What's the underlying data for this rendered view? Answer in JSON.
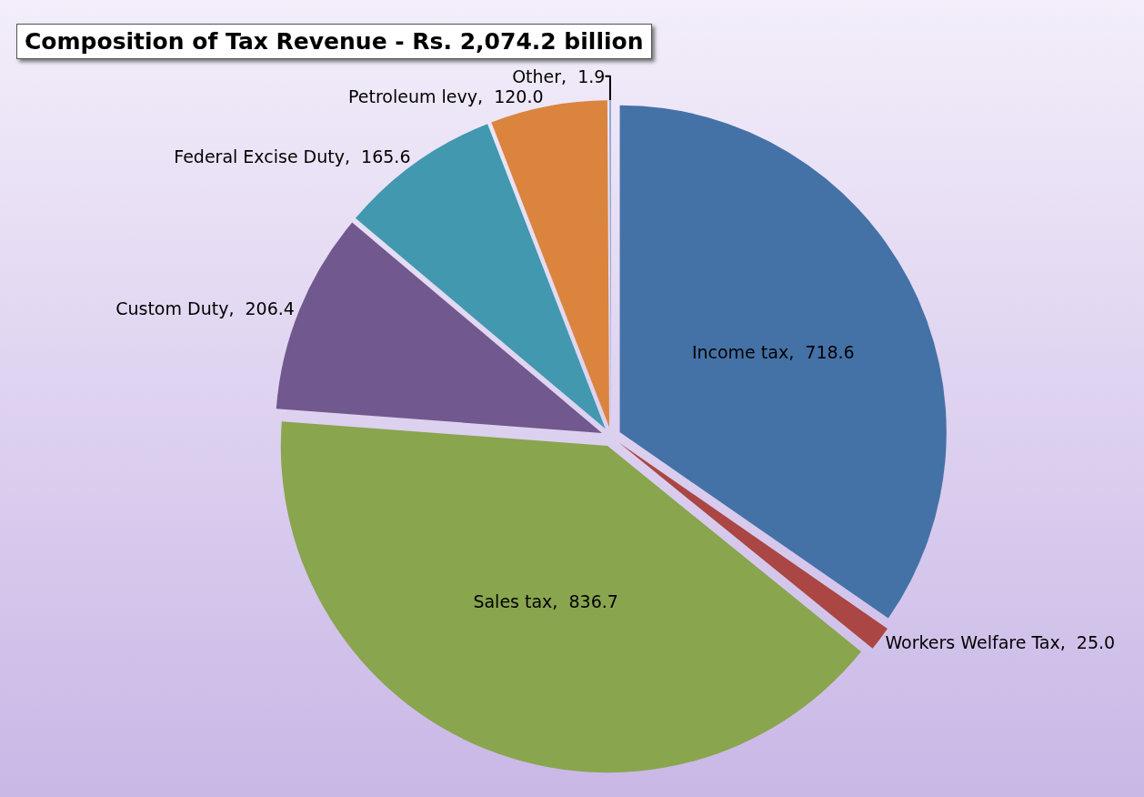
{
  "chart_data": {
    "type": "pie",
    "title": "Composition of Tax Revenue - Rs. 2,074.2 billion",
    "categories": [
      "Income tax",
      "Workers Welfare Tax",
      "Sales tax",
      "Custom Duty",
      "Federal Excise Duty",
      "Petroleum levy",
      "Other"
    ],
    "values": [
      718.6,
      25.0,
      836.7,
      206.4,
      165.6,
      120.0,
      1.9
    ],
    "value_labels": [
      "718.6",
      "25.0",
      "836.7",
      "206.4",
      "165.6",
      "120.0",
      "1.9"
    ],
    "colors": [
      "#4472a7",
      "#aa4643",
      "#89a54e",
      "#71588f",
      "#4198af",
      "#db843d",
      "#93a9cf"
    ],
    "legend": false
  }
}
